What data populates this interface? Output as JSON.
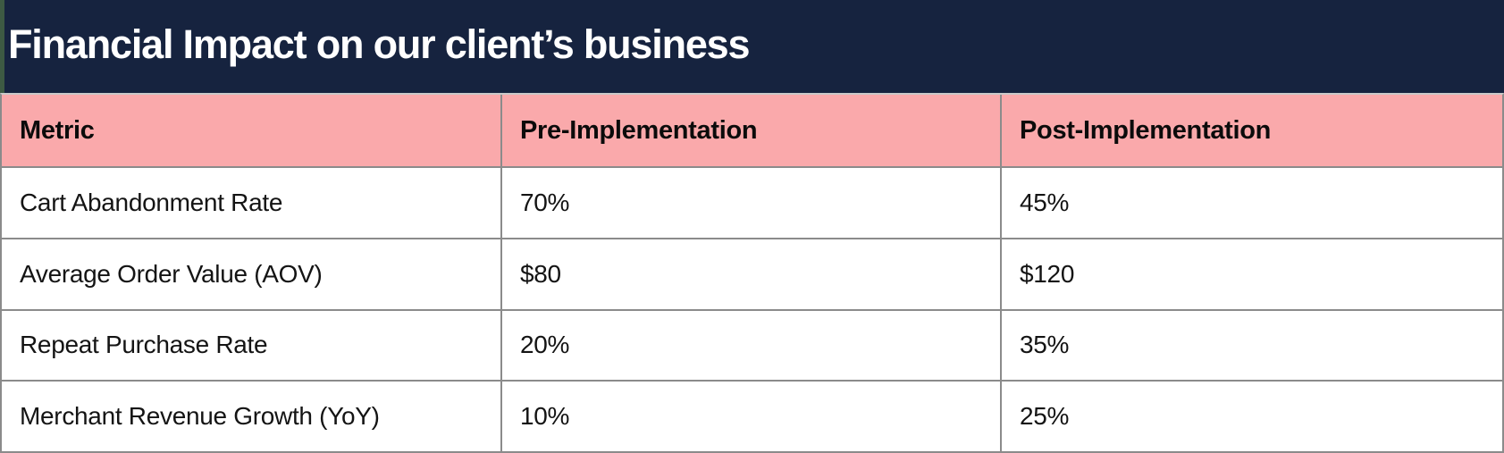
{
  "slide": {
    "title": "Financial Impact on our client’s business"
  },
  "table": {
    "columns": [
      "Metric",
      "Pre-Implementation",
      "Post-Implementation"
    ],
    "rows": [
      {
        "metric": "Cart Abandonment Rate",
        "pre": "70%",
        "post": "45%"
      },
      {
        "metric": "Average Order Value (AOV)",
        "pre": "$80",
        "post": "$120"
      },
      {
        "metric": "Repeat Purchase Rate",
        "pre": "20%",
        "post": "35%"
      },
      {
        "metric": "Merchant Revenue Growth (YoY)",
        "pre": "10%",
        "post": "25%"
      }
    ]
  },
  "colors": {
    "title_bg": "#16233F",
    "title_text": "#FFFFFF",
    "header_bg": "#FAA9AB",
    "accent_green": "#3D5A43",
    "border_gray": "#8B8B8B",
    "body_text": "#141414"
  },
  "chart_data": {
    "type": "table",
    "title": "Financial Impact on our client’s business",
    "columns": [
      "Metric",
      "Pre-Implementation",
      "Post-Implementation"
    ],
    "rows": [
      [
        "Cart Abandonment Rate",
        "70%",
        "45%"
      ],
      [
        "Average Order Value (AOV)",
        "$80",
        "$120"
      ],
      [
        "Repeat Purchase Rate",
        "20%",
        "35%"
      ],
      [
        "Merchant Revenue Growth (YoY)",
        "10%",
        "25%"
      ]
    ]
  }
}
